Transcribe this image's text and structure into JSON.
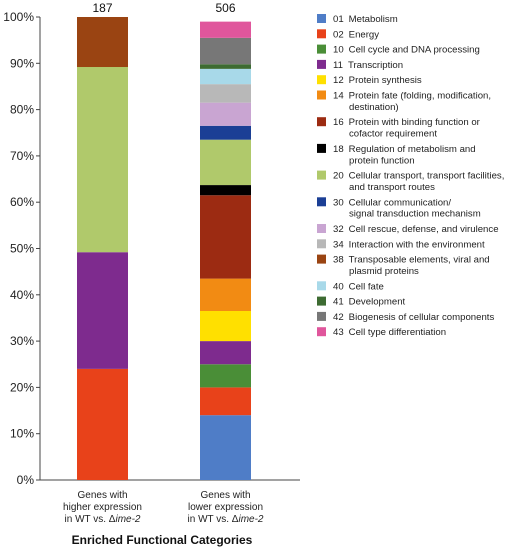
{
  "chart_data": {
    "type": "bar",
    "stacked": true,
    "title": "",
    "xlabel": "Enriched Functional Categories",
    "ylabel": "",
    "ylim": [
      0,
      100
    ],
    "y_ticks": [
      "0%",
      "10%",
      "20%",
      "30%",
      "40%",
      "50%",
      "60%",
      "70%",
      "80%",
      "90%",
      "100%"
    ],
    "y_tick_values": [
      0,
      10,
      20,
      30,
      40,
      50,
      60,
      70,
      80,
      90,
      100
    ],
    "legend_position": "right",
    "grid": false,
    "categories": [
      {
        "lines": [
          {
            "text": "Genes with"
          },
          {
            "text": "higher expression"
          },
          {
            "text": "in WT vs. ",
            "delta": "Δ",
            "italic": "ime-2"
          }
        ],
        "total_label": "187"
      },
      {
        "lines": [
          {
            "text": "Genes with"
          },
          {
            "text": "lower expression"
          },
          {
            "text": "in WT vs. ",
            "delta": "Δ",
            "italic": "ime-2"
          }
        ],
        "total_label": "506"
      }
    ],
    "series": [
      {
        "code": "01",
        "name": [
          "Metabolism"
        ],
        "color": "#4f7dc7",
        "values": [
          0,
          14
        ]
      },
      {
        "code": "02",
        "name": [
          "Energy"
        ],
        "color": "#e8421a",
        "values": [
          24,
          6
        ]
      },
      {
        "code": "10",
        "name": [
          "Cell cycle and DNA processing"
        ],
        "color": "#4a8e37",
        "values": [
          0,
          5
        ]
      },
      {
        "code": "11",
        "name": [
          "Transcription"
        ],
        "color": "#7e2b8e",
        "values": [
          25.2,
          5
        ]
      },
      {
        "code": "12",
        "name": [
          "Protein synthesis"
        ],
        "color": "#ffe000",
        "values": [
          0,
          6.5
        ]
      },
      {
        "code": "14",
        "name": [
          "Protein fate (folding, modification,",
          "destination)"
        ],
        "color": "#f28b13",
        "values": [
          0,
          7
        ]
      },
      {
        "code": "16",
        "name": [
          "Protein with binding function or",
          "cofactor requirement"
        ],
        "color": "#9c2b12",
        "values": [
          0,
          18
        ]
      },
      {
        "code": "18",
        "name": [
          "Regulation of metabolism and",
          "protein function"
        ],
        "color": "#000000",
        "values": [
          0,
          2.2
        ]
      },
      {
        "code": "20",
        "name": [
          "Cellular transport, transport facilities,",
          "and transport routes"
        ],
        "color": "#b0c96b",
        "values": [
          40,
          9.8
        ]
      },
      {
        "code": "30",
        "name": [
          "Cellular communication/",
          "signal transduction mechanism"
        ],
        "color": "#1b3f95",
        "values": [
          0,
          3
        ]
      },
      {
        "code": "32",
        "name": [
          "Cell rescue, defense, and virulence"
        ],
        "color": "#c9a5d2",
        "values": [
          0,
          5
        ]
      },
      {
        "code": "34",
        "name": [
          "Interaction with the environment"
        ],
        "color": "#b8b8b8",
        "values": [
          0,
          4
        ]
      },
      {
        "code": "38",
        "name": [
          "Transposable elements, viral and",
          "plasmid proteins"
        ],
        "color": "#9a4412",
        "values": [
          10.8,
          0
        ]
      },
      {
        "code": "40",
        "name": [
          "Cell fate"
        ],
        "color": "#a8d9e9",
        "values": [
          0,
          3.3
        ]
      },
      {
        "code": "41",
        "name": [
          "Development"
        ],
        "color": "#3d6b32",
        "values": [
          0,
          1
        ]
      },
      {
        "code": "42",
        "name": [
          "Biogenesis of cellular components"
        ],
        "color": "#777777",
        "values": [
          0,
          5.7
        ]
      },
      {
        "code": "43",
        "name": [
          "Cell type differentiation"
        ],
        "color": "#e0569c",
        "values": [
          0,
          3.5
        ]
      }
    ]
  }
}
